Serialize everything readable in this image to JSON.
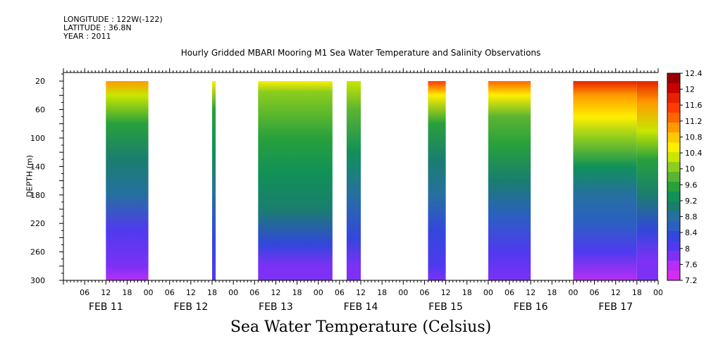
{
  "header": {
    "longitude": "LONGITUDE : 122W(-122)",
    "latitude": "LATITUDE : 36.8N",
    "year": "YEAR : 2011"
  },
  "chart_data": {
    "type": "heatmap",
    "title": "Hourly Gridded MBARI Mooring M1 Sea Water Temperature and Salinity Observations",
    "subtitle": "Sea Water Temperature (Celsius)",
    "ylabel": "DEPTH (m)",
    "xlabel": "",
    "y_ticks": [
      20,
      60,
      100,
      140,
      180,
      220,
      260,
      300
    ],
    "ylim": [
      300,
      8
    ],
    "x_hour_labels": [
      "06",
      "12",
      "18",
      "00",
      "06",
      "12",
      "18",
      "00",
      "06",
      "12",
      "18",
      "00",
      "06",
      "12",
      "18",
      "00",
      "06",
      "12",
      "18",
      "00",
      "06",
      "12",
      "18",
      "00",
      "06",
      "12",
      "18",
      "00",
      "06",
      "12",
      "18",
      "00"
    ],
    "x_day_labels": [
      "FEB 11",
      "FEB 12",
      "FEB 13",
      "FEB 14",
      "FEB 15",
      "FEB 16",
      "FEB 17"
    ],
    "x_range_hours": [
      0,
      168
    ],
    "colorbar": {
      "labels": [
        "12.4",
        "12",
        "11.6",
        "11.2",
        "10.8",
        "10.4",
        "10",
        "9.6",
        "9.2",
        "8.8",
        "8.4",
        "8",
        "7.6",
        "7.2"
      ],
      "min": 7.2,
      "max": 12.4,
      "colors": [
        "#9b0000",
        "#c80000",
        "#e62200",
        "#ff3a00",
        "#ff6600",
        "#ff9a00",
        "#ffc800",
        "#ffee00",
        "#c8e600",
        "#8ccd1e",
        "#5ab432",
        "#28a03c",
        "#119158",
        "#1a7e6e",
        "#2670a0",
        "#2c5fc2",
        "#3347dc",
        "#4f3aef",
        "#7c31f5",
        "#b72ff5",
        "#d52df0"
      ]
    },
    "segments": [
      {
        "start": 12,
        "end": 24,
        "profile": [
          [
            20,
            11.0
          ],
          [
            40,
            10.2
          ],
          [
            80,
            9.6
          ],
          [
            130,
            9.1
          ],
          [
            180,
            8.7
          ],
          [
            230,
            8.1
          ],
          [
            280,
            7.7
          ],
          [
            300,
            7.5
          ]
        ]
      },
      {
        "start": 42,
        "end": 43,
        "profile": [
          [
            20,
            10.5
          ],
          [
            60,
            9.6
          ],
          [
            120,
            9.2
          ],
          [
            180,
            8.8
          ],
          [
            240,
            8.3
          ],
          [
            300,
            8.0
          ]
        ]
      },
      {
        "start": 55,
        "end": 76,
        "profile": [
          [
            20,
            10.5
          ],
          [
            35,
            10.0
          ],
          [
            100,
            9.6
          ],
          [
            150,
            9.3
          ],
          [
            200,
            8.9
          ],
          [
            250,
            8.3
          ],
          [
            280,
            7.8
          ],
          [
            300,
            7.6
          ]
        ]
      },
      {
        "start": 80,
        "end": 84,
        "profile": [
          [
            20,
            10.3
          ],
          [
            60,
            9.7
          ],
          [
            120,
            9.2
          ],
          [
            180,
            8.8
          ],
          [
            240,
            8.2
          ],
          [
            280,
            7.7
          ],
          [
            300,
            7.6
          ]
        ]
      },
      {
        "start": 103,
        "end": 108,
        "profile": [
          [
            20,
            11.5
          ],
          [
            40,
            10.5
          ],
          [
            80,
            9.6
          ],
          [
            130,
            9.1
          ],
          [
            180,
            8.7
          ],
          [
            230,
            8.3
          ],
          [
            280,
            7.9
          ],
          [
            300,
            7.7
          ]
        ]
      },
      {
        "start": 120,
        "end": 132,
        "profile": [
          [
            20,
            11.4
          ],
          [
            40,
            10.6
          ],
          [
            70,
            9.9
          ],
          [
            110,
            9.5
          ],
          [
            160,
            9.0
          ],
          [
            210,
            8.5
          ],
          [
            260,
            8.0
          ],
          [
            300,
            7.7
          ]
        ]
      },
      {
        "start": 144,
        "end": 162,
        "profile": [
          [
            20,
            11.8
          ],
          [
            40,
            11.2
          ],
          [
            70,
            10.6
          ],
          [
            100,
            10.0
          ],
          [
            140,
            9.4
          ],
          [
            180,
            8.8
          ],
          [
            220,
            8.4
          ],
          [
            260,
            7.9
          ],
          [
            300,
            7.4
          ]
        ]
      },
      {
        "start": 162,
        "end": 168,
        "profile": [
          [
            20,
            11.8
          ],
          [
            50,
            11.0
          ],
          [
            90,
            10.2
          ],
          [
            130,
            9.5
          ],
          [
            180,
            8.9
          ],
          [
            230,
            8.3
          ],
          [
            270,
            7.8
          ],
          [
            300,
            7.6
          ]
        ]
      }
    ]
  }
}
